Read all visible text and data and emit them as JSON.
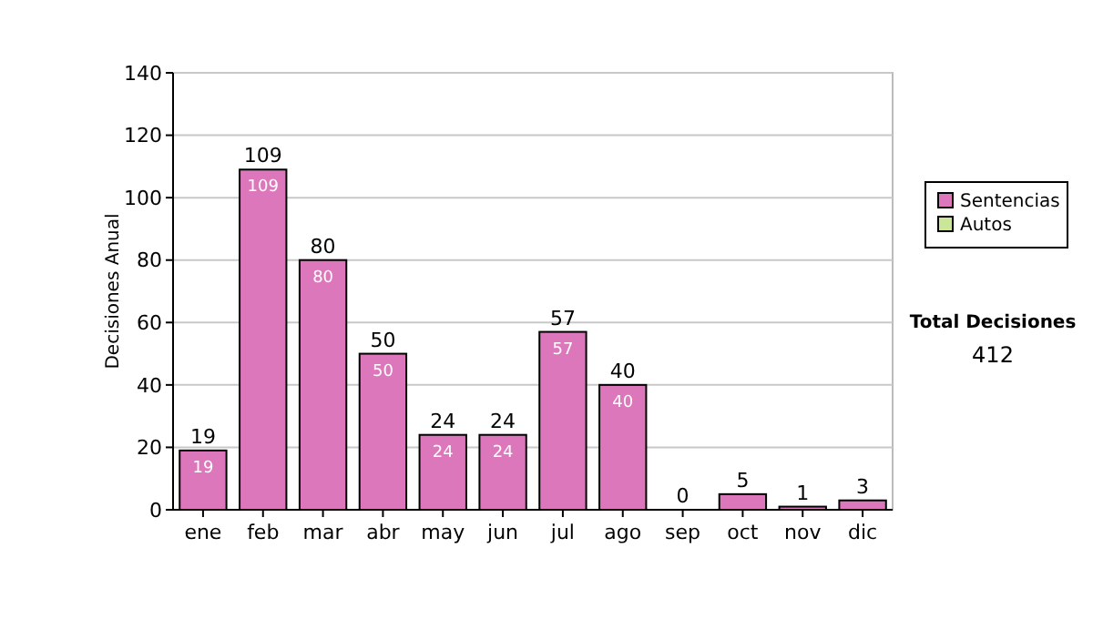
{
  "chart_data": {
    "type": "bar",
    "ylabel": "Decisiones Anual",
    "categories": [
      "ene",
      "feb",
      "mar",
      "abr",
      "may",
      "jun",
      "jul",
      "ago",
      "sep",
      "oct",
      "nov",
      "dic"
    ],
    "stacked": true,
    "series": [
      {
        "name": "Sentencias",
        "color": "#dd77bb",
        "values": [
          19,
          109,
          80,
          50,
          24,
          24,
          57,
          40,
          0,
          5,
          1,
          3
        ],
        "value_labels": [
          "19",
          "109",
          "80",
          "50",
          "24",
          "24",
          "57",
          "40",
          null,
          null,
          null,
          null
        ]
      },
      {
        "name": "Autos",
        "color": "#cce699",
        "values": [
          0,
          0,
          0,
          0,
          0,
          0,
          0,
          0,
          0,
          0,
          0,
          0
        ]
      }
    ],
    "totals": [
      "19",
      "109",
      "80",
      "50",
      "24",
      "24",
      "57",
      "40",
      "0",
      "5",
      "1",
      "3"
    ],
    "ylim": [
      0,
      140
    ],
    "yticks": [
      0,
      20,
      40,
      60,
      80,
      100,
      120,
      140
    ],
    "grid": "y",
    "legend": "right",
    "annotations": [
      "Total Decisiones",
      "412"
    ]
  }
}
